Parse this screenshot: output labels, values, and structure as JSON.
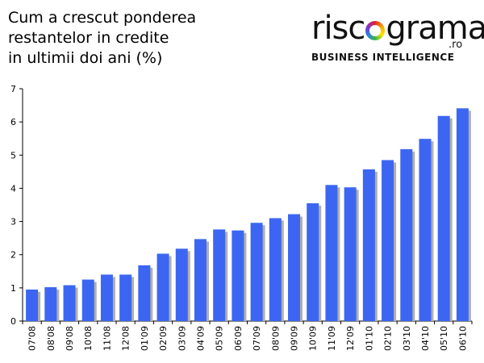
{
  "title_lines": [
    "Cum a crescut ponderea",
    "restantelor in credite",
    "in ultimii doi ani (%)"
  ],
  "logo": {
    "word_start": "risc",
    "word_end": "grama",
    "suffix": ".ro",
    "tagline": "BUSINESS INTELLIGENCE"
  },
  "colors": {
    "bar": "#3c66f2",
    "bar_shadow": "#b0b0b0",
    "axis": "#000000"
  },
  "chart_data": {
    "type": "bar",
    "title": "Cum a crescut ponderea restantelor in credite in ultimii doi ani (%)",
    "categories": [
      "07'08",
      "08'08",
      "09'08",
      "10'08",
      "11'08",
      "12'08",
      "01'09",
      "02'09",
      "03'09",
      "04'09",
      "05'09",
      "06'09",
      "07'09",
      "08'09",
      "09'09",
      "10'09",
      "11'09",
      "12'09",
      "01'10",
      "02'10",
      "03'10",
      "04'10",
      "05'10",
      "06'10"
    ],
    "values": [
      0.95,
      1.02,
      1.08,
      1.25,
      1.4,
      1.4,
      1.68,
      2.03,
      2.18,
      2.47,
      2.76,
      2.73,
      2.96,
      3.1,
      3.22,
      3.55,
      4.1,
      4.03,
      4.57,
      4.85,
      5.18,
      5.49,
      6.18,
      6.41
    ],
    "ylim": [
      0,
      7
    ],
    "yticks": [
      0,
      1,
      2,
      3,
      4,
      5,
      6,
      7
    ],
    "grid": false,
    "legend": "none"
  }
}
